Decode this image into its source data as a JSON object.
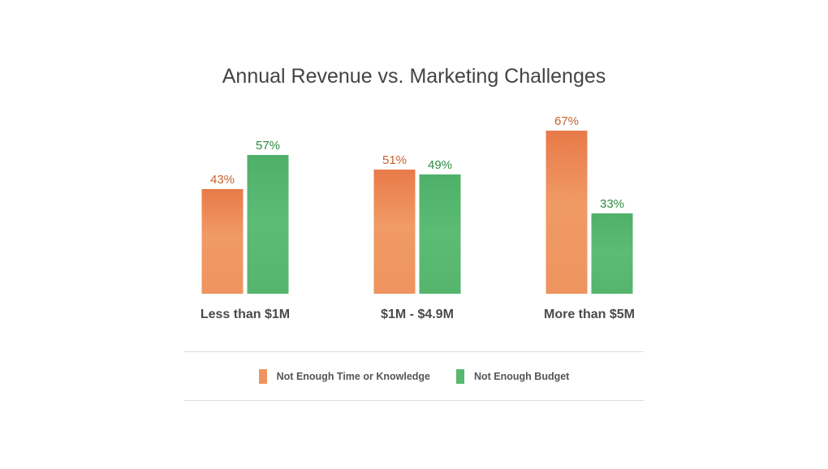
{
  "chart_data": {
    "type": "bar",
    "title": "Annual Revenue vs. Marketing Challenges",
    "xlabel": "",
    "ylabel": "",
    "categories": [
      "Less than $1M",
      "$1M - $4.9M",
      "More than $5M"
    ],
    "series": [
      {
        "name": "Not Enough Time or Knowledge",
        "values": [
          43,
          51,
          67
        ],
        "labels": [
          "43%",
          "51%",
          "67%"
        ],
        "color": "#ef9460",
        "label_color": "#c8622c"
      },
      {
        "name": "Not Enough Budget",
        "values": [
          57,
          49,
          33
        ],
        "labels": [
          "57%",
          "49%",
          "33%"
        ],
        "color": "#58b870",
        "label_color": "#2e8a43"
      }
    ],
    "ylim": [
      0,
      67
    ],
    "grid": false,
    "legend_position": "bottom"
  }
}
